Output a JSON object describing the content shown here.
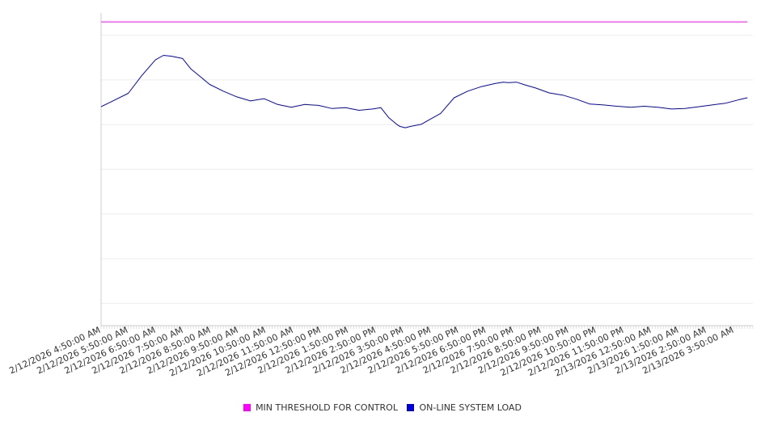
{
  "chart_data": {
    "type": "line",
    "title": "",
    "xlabel": "",
    "ylabel": "",
    "grid": true,
    "legend_position": "bottom",
    "x_tick_labels": [
      "2/12/2026 4:50:00 AM",
      "2/12/2026 5:50:00 AM",
      "2/12/2026 6:50:00 AM",
      "2/12/2026 7:50:00 AM",
      "2/12/2026 8:50:00 AM",
      "2/12/2026 9:50:00 AM",
      "2/12/2026 10:50:00 AM",
      "2/12/2026 11:50:00 AM",
      "2/12/2026 12:50:00 PM",
      "2/12/2026 1:50:00 PM",
      "2/12/2026 2:50:00 PM",
      "2/12/2026 3:50:00 PM",
      "2/12/2026 4:50:00 PM",
      "2/12/2026 5:50:00 PM",
      "2/12/2026 6:50:00 PM",
      "2/12/2026 7:50:00 PM",
      "2/12/2026 8:50:00 PM",
      "2/12/2026 9:50:00 PM",
      "2/12/2026 10:50:00 PM",
      "2/12/2026 11:50:00 PM",
      "2/13/2026 12:50:00 AM",
      "2/13/2026 1:50:00 AM",
      "2/13/2026 2:50:00 AM",
      "2/13/2026 3:50:00 AM"
    ],
    "x_hours": [
      0,
      0.5,
      1,
      1.5,
      2,
      2.3,
      2.6,
      3,
      3.3,
      3.6,
      4,
      4.5,
      5,
      5.5,
      6,
      6.5,
      7,
      7.5,
      8,
      8.5,
      9,
      9.5,
      10,
      10.3,
      10.6,
      10.9,
      11,
      11.2,
      11.4,
      11.8,
      12,
      12.5,
      13,
      13.5,
      14,
      14.5,
      14.8,
      15,
      15.3,
      15.6,
      16,
      16.5,
      17,
      17.5,
      18,
      18.5,
      19,
      19.5,
      20,
      20.5,
      21,
      21.5,
      22,
      22.5,
      23,
      23.5,
      23.8
    ],
    "series": [
      {
        "name": "MIN THRESHOLD FOR CONTROL",
        "color": "#ff00ff",
        "values": [
          103,
          103,
          103,
          103,
          103,
          103,
          103,
          103,
          103,
          103,
          103,
          103,
          103,
          103,
          103,
          103,
          103,
          103,
          103,
          103,
          103,
          103,
          103,
          103,
          103,
          103,
          103,
          103,
          103,
          103,
          103,
          103,
          103,
          103,
          103,
          103,
          103,
          103,
          103,
          103,
          103,
          103,
          103,
          103,
          103,
          103,
          103,
          103,
          103,
          103,
          103,
          103,
          103,
          103,
          103,
          103,
          103
        ]
      },
      {
        "name": "ON-LINE SYSTEM LOAD",
        "color": "#0000dd",
        "values": [
          84,
          85.5,
          87,
          91,
          94.5,
          95.5,
          95.3,
          94.8,
          92.5,
          91,
          89,
          87.5,
          86.2,
          85.3,
          85.8,
          84.5,
          83.9,
          84.5,
          84.3,
          83.6,
          83.8,
          83.2,
          83.5,
          83.8,
          81.5,
          80,
          79.6,
          79.3,
          79.6,
          80.1,
          80.8,
          82.5,
          86,
          87.5,
          88.5,
          89.2,
          89.5,
          89.4,
          89.5,
          88.9,
          88.2,
          87.1,
          86.6,
          85.7,
          84.6,
          84.4,
          84.1,
          83.9,
          84.1,
          83.9,
          83.5,
          83.6,
          84,
          84.4,
          84.8,
          85.6,
          86
        ]
      }
    ]
  }
}
